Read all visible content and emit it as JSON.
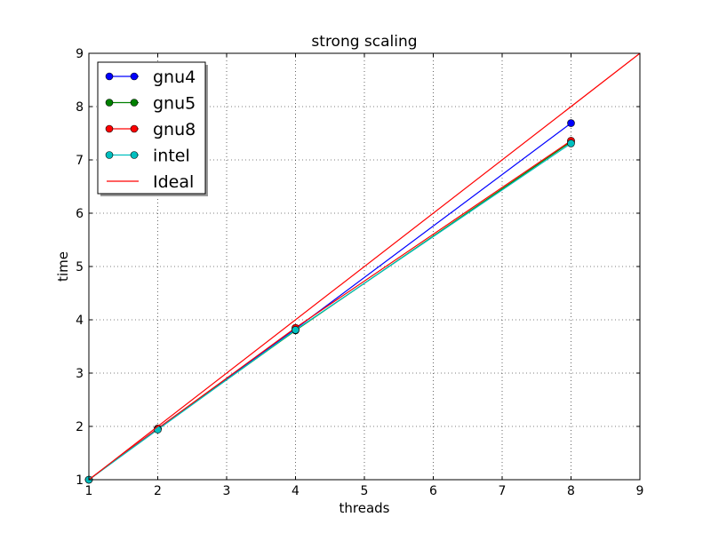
{
  "chart_data": {
    "type": "line",
    "title": "strong scaling",
    "xlabel": "threads",
    "ylabel": "time",
    "xlim": [
      1,
      9
    ],
    "ylim": [
      1,
      9
    ],
    "xticks": [
      1,
      2,
      3,
      4,
      5,
      6,
      7,
      8,
      9
    ],
    "yticks": [
      1,
      2,
      3,
      4,
      5,
      6,
      7,
      8,
      9
    ],
    "grid": true,
    "legend_position": "top-left",
    "series": [
      {
        "name": "gnu4",
        "color": "#0000ff",
        "marker": "circle",
        "x": [
          1,
          2,
          4,
          8
        ],
        "y": [
          1,
          1.96,
          3.83,
          7.69
        ]
      },
      {
        "name": "gnu5",
        "color": "#008000",
        "marker": "circle",
        "x": [
          1,
          2,
          4,
          8
        ],
        "y": [
          1,
          1.95,
          3.8,
          7.34
        ]
      },
      {
        "name": "gnu8",
        "color": "#ff0000",
        "marker": "circle",
        "x": [
          1,
          2,
          4,
          8
        ],
        "y": [
          1,
          1.96,
          3.85,
          7.36
        ]
      },
      {
        "name": "intel",
        "color": "#00bfbf",
        "marker": "circle",
        "x": [
          1,
          2,
          4,
          8
        ],
        "y": [
          1,
          1.94,
          3.81,
          7.31
        ]
      },
      {
        "name": "Ideal",
        "color": "#ff0000",
        "marker": "none",
        "x": [
          1,
          9
        ],
        "y": [
          1,
          9
        ]
      }
    ]
  }
}
